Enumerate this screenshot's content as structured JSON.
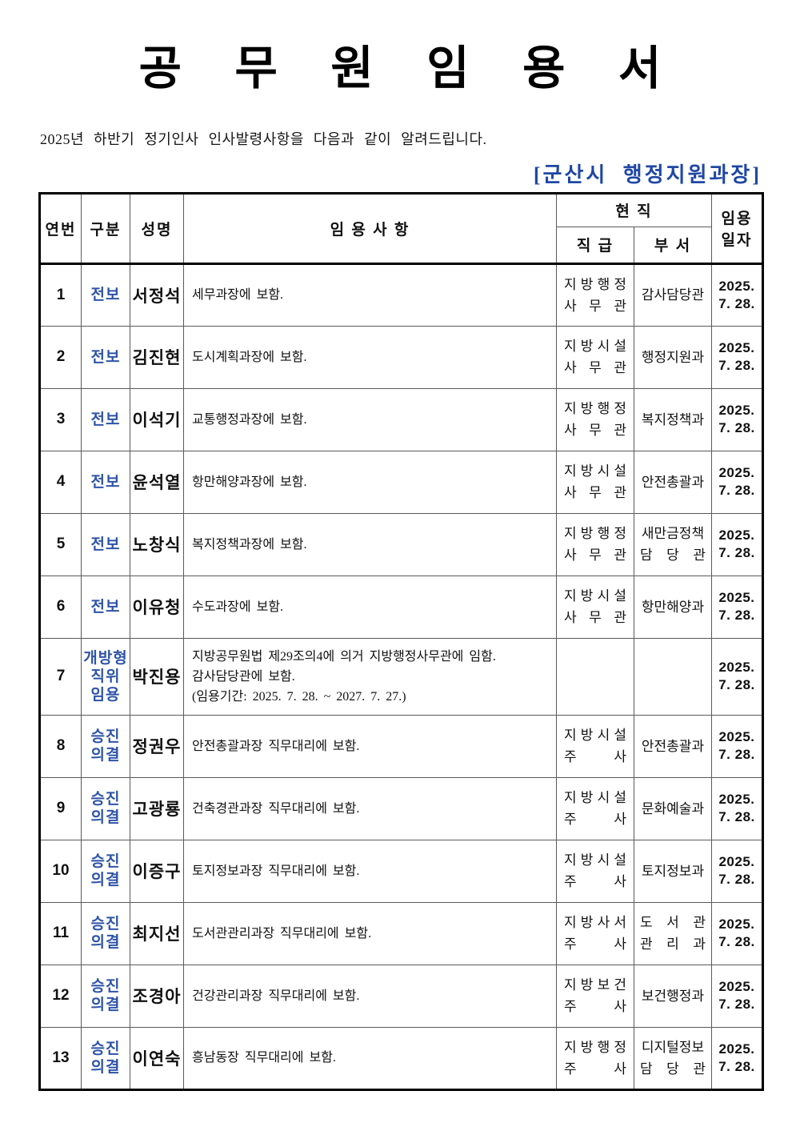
{
  "title": "공 무 원 임 용 서",
  "subtitle": "2025년 하반기 정기인사 인사발령사항을 다음과 같이 알려드립니다.",
  "issuer": "[군산시 행정지원과장]",
  "colors": {
    "category_blue": "#2e54a8",
    "issuer_blue": "#2047a5",
    "border_black": "#000000",
    "grid_line": "#5a5a5a"
  },
  "table": {
    "headers": {
      "no": "연번",
      "category": "구분",
      "name": "성명",
      "appointment": "임 용 사 항",
      "current_position": "현 직",
      "rank": "직 급",
      "department": "부 서",
      "date_line1": "임용",
      "date_line2": "일자"
    },
    "rows": [
      {
        "no": "1",
        "category": [
          "전보"
        ],
        "name": "서정석",
        "appointment": [
          "세무과장에 보함."
        ],
        "rank": [
          "지 방 행 정",
          "사 무 관"
        ],
        "dept": [
          "감사담당관"
        ],
        "date": [
          "2025.",
          "7. 28."
        ]
      },
      {
        "no": "2",
        "category": [
          "전보"
        ],
        "name": "김진현",
        "appointment": [
          "도시계획과장에 보함."
        ],
        "rank": [
          "지 방 시 설",
          "사 무 관"
        ],
        "dept": [
          "행정지원과"
        ],
        "date": [
          "2025.",
          "7. 28."
        ]
      },
      {
        "no": "3",
        "category": [
          "전보"
        ],
        "name": "이석기",
        "appointment": [
          "교통행정과장에 보함."
        ],
        "rank": [
          "지 방 행 정",
          "사 무 관"
        ],
        "dept": [
          "복지정책과"
        ],
        "date": [
          "2025.",
          "7. 28."
        ]
      },
      {
        "no": "4",
        "category": [
          "전보"
        ],
        "name": "윤석열",
        "appointment": [
          "항만해양과장에 보함."
        ],
        "rank": [
          "지 방 시 설",
          "사 무 관"
        ],
        "dept": [
          "안전총괄과"
        ],
        "date": [
          "2025.",
          "7. 28."
        ]
      },
      {
        "no": "5",
        "category": [
          "전보"
        ],
        "name": "노창식",
        "appointment": [
          "복지정책과장에 보함."
        ],
        "rank": [
          "지 방 행 정",
          "사 무 관"
        ],
        "dept": [
          "새만금정책",
          "담 당 관"
        ],
        "date": [
          "2025.",
          "7. 28."
        ]
      },
      {
        "no": "6",
        "category": [
          "전보"
        ],
        "name": "이유청",
        "appointment": [
          "수도과장에 보함."
        ],
        "rank": [
          "지 방 시 설",
          "사 무 관"
        ],
        "dept": [
          "항만해양과"
        ],
        "date": [
          "2025.",
          "7. 28."
        ]
      },
      {
        "no": "7",
        "category": [
          "개방형",
          "직위",
          "임용"
        ],
        "name": "박진용",
        "appointment": [
          "지방공무원법 제29조의4에 의거 지방행정사무관에 임함.",
          "감사담당관에 보함.",
          "(임용기간: 2025. 7. 28. ~ 2027. 7. 27.)"
        ],
        "rank": [],
        "dept": [],
        "date": [
          "2025.",
          "7. 28."
        ]
      },
      {
        "no": "8",
        "category": [
          "승진",
          "의결"
        ],
        "name": "정권우",
        "appointment": [
          "안전총괄과장 직무대리에 보함."
        ],
        "rank": [
          "지 방 시 설",
          "주 사"
        ],
        "dept": [
          "안전총괄과"
        ],
        "date": [
          "2025.",
          "7. 28."
        ]
      },
      {
        "no": "9",
        "category": [
          "승진",
          "의결"
        ],
        "name": "고광룡",
        "appointment": [
          "건축경관과장 직무대리에 보함."
        ],
        "rank": [
          "지 방 시 설",
          "주 사"
        ],
        "dept": [
          "문화예술과"
        ],
        "date": [
          "2025.",
          "7. 28."
        ]
      },
      {
        "no": "10",
        "category": [
          "승진",
          "의결"
        ],
        "name": "이증구",
        "appointment": [
          "토지정보과장 직무대리에 보함."
        ],
        "rank": [
          "지 방 시 설",
          "주 사"
        ],
        "dept": [
          "토지정보과"
        ],
        "date": [
          "2025.",
          "7. 28."
        ]
      },
      {
        "no": "11",
        "category": [
          "승진",
          "의결"
        ],
        "name": "최지선",
        "appointment": [
          "도서관관리과장 직무대리에 보함."
        ],
        "rank": [
          "지 방 사 서",
          "주 사"
        ],
        "dept": [
          "도 서 관",
          "관 리 과"
        ],
        "date": [
          "2025.",
          "7. 28."
        ]
      },
      {
        "no": "12",
        "category": [
          "승진",
          "의결"
        ],
        "name": "조경아",
        "appointment": [
          "건강관리과장 직무대리에 보함."
        ],
        "rank": [
          "지 방 보 건",
          "주 사"
        ],
        "dept": [
          "보건행정과"
        ],
        "date": [
          "2025.",
          "7. 28."
        ]
      },
      {
        "no": "13",
        "category": [
          "승진",
          "의결"
        ],
        "name": "이연숙",
        "appointment": [
          "흥남동장 직무대리에 보함."
        ],
        "rank": [
          "지 방 행 정",
          "주 사"
        ],
        "dept": [
          "디지털정보",
          "담 당 관"
        ],
        "date": [
          "2025.",
          "7. 28."
        ]
      }
    ]
  }
}
